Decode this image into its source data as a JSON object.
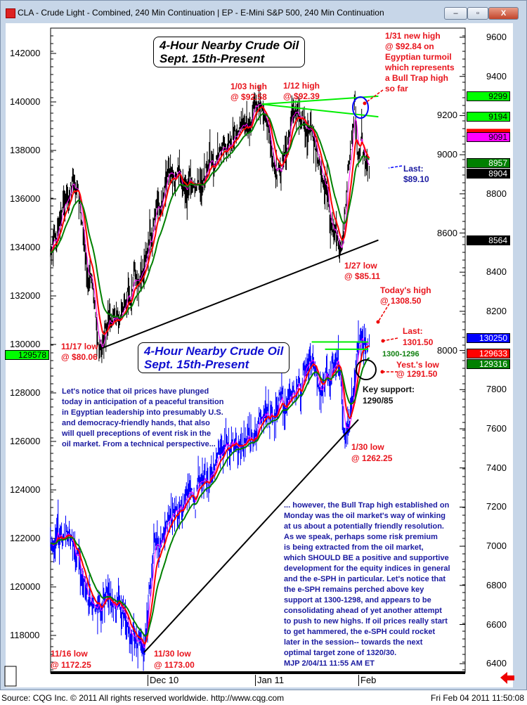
{
  "window": {
    "title": "CLA - Crude Light - Combined, 240 Min Continuation  |  EP - E-Mini S&P 500, 240 Min Continuation",
    "buttons": {
      "minimize": "–",
      "maximize": "▫",
      "close": "X"
    }
  },
  "footer": {
    "source": "Source: CQG Inc. © 2011 All rights reserved worldwide. http://www.cqg.com",
    "timestamp": "Fri Feb 04 2011 11:50:08"
  },
  "colors": {
    "crude": "#000000",
    "sp": "#0000ff",
    "ma_fast": "#ff00ff",
    "ma_mid": "#ff0000",
    "ma_slow": "#008000",
    "trend_green": "#00ee00",
    "annotation_red": "#e8141c",
    "annotation_blue": "#1a1aa0"
  },
  "chart_data": {
    "type": "line",
    "x_ticks": [
      {
        "label": "Dec  10",
        "date": "2010-12-01"
      },
      {
        "label": "Jan  11",
        "date": "2011-01-01"
      },
      {
        "label": "Feb",
        "date": "2011-02-01"
      }
    ],
    "left_axis": {
      "ticks": [
        142000,
        140000,
        138000,
        136000,
        134000,
        132000,
        130000,
        128000,
        126000,
        124000,
        122000,
        120000,
        118000
      ],
      "range": [
        116600,
        143200
      ]
    },
    "right_axis": {
      "ticks": [
        9600,
        9400,
        9200,
        9000,
        8800,
        8600,
        8400,
        8200,
        8000,
        7800,
        7600,
        7400,
        7200,
        7000,
        6800,
        6600,
        6400
      ],
      "range": [
        6310,
        9700
      ]
    },
    "series": [
      {
        "key": "crude",
        "axis": "right",
        "points": [
          [
            "2010-11-03",
            8500
          ],
          [
            "2010-11-08",
            8780
          ],
          [
            "2010-11-11",
            8820
          ],
          [
            "2010-11-17",
            8006
          ],
          [
            "2010-11-19",
            8120
          ],
          [
            "2010-11-23",
            8150
          ],
          [
            "2010-11-30",
            8420
          ],
          [
            "2010-12-07",
            8920
          ],
          [
            "2010-12-15",
            8840
          ],
          [
            "2010-12-22",
            9030
          ],
          [
            "2010-12-28",
            9150
          ],
          [
            "2011-01-03",
            9258
          ],
          [
            "2011-01-07",
            8900
          ],
          [
            "2011-01-10",
            9020
          ],
          [
            "2011-01-12",
            9239
          ],
          [
            "2011-01-18",
            9120
          ],
          [
            "2011-01-21",
            8900
          ],
          [
            "2011-01-24",
            8620
          ],
          [
            "2011-01-27",
            8511
          ],
          [
            "2011-01-31",
            9284
          ],
          [
            "2011-02-01",
            9000
          ],
          [
            "2011-02-02",
            9150
          ],
          [
            "2011-02-03",
            8960
          ],
          [
            "2011-02-04",
            8910
          ]
        ]
      },
      {
        "key": "sp",
        "axis": "left",
        "points": [
          [
            "2010-11-03",
            121800
          ],
          [
            "2010-11-09",
            122000
          ],
          [
            "2010-11-12",
            120500
          ],
          [
            "2010-11-16",
            119000
          ],
          [
            "2010-11-19",
            119800
          ],
          [
            "2010-11-24",
            119000
          ],
          [
            "2010-11-30",
            117300
          ],
          [
            "2010-12-03",
            122000
          ],
          [
            "2010-12-07",
            122800
          ],
          [
            "2010-12-13",
            124000
          ],
          [
            "2010-12-17",
            124300
          ],
          [
            "2010-12-22",
            125500
          ],
          [
            "2010-12-28",
            125800
          ],
          [
            "2011-01-03",
            127000
          ],
          [
            "2011-01-07",
            127000
          ],
          [
            "2011-01-12",
            128000
          ],
          [
            "2011-01-18",
            129300
          ],
          [
            "2011-01-21",
            128000
          ],
          [
            "2011-01-26",
            129500
          ],
          [
            "2011-01-28",
            126225
          ],
          [
            "2011-01-31",
            128500
          ],
          [
            "2011-02-01",
            130200
          ],
          [
            "2011-02-02",
            130400
          ],
          [
            "2011-02-03",
            130000
          ],
          [
            "2011-02-04",
            130150
          ]
        ]
      }
    ],
    "trendlines": [
      {
        "axis": "right",
        "color": "black",
        "from": [
          "2010-11-17",
          8006
        ],
        "to": [
          "2011-02-07",
          8564
        ]
      },
      {
        "axis": "right",
        "color": "green",
        "from": [
          "2011-01-03",
          9258
        ],
        "to": [
          "2011-02-07",
          9299
        ]
      },
      {
        "axis": "right",
        "color": "green",
        "from": [
          "2011-01-03",
          9258
        ],
        "to": [
          "2011-02-07",
          9194
        ]
      },
      {
        "axis": "left",
        "color": "black",
        "from": [
          "2010-11-30",
          117300
        ],
        "to": [
          "2011-02-01",
          126900
        ]
      },
      {
        "axis": "left",
        "color": "green",
        "from": [
          "2011-01-18",
          130100
        ],
        "to": [
          "2011-02-04",
          130100
        ]
      },
      {
        "axis": "left",
        "color": "green",
        "from": [
          "2011-01-22",
          129800
        ],
        "to": [
          "2011-02-04",
          129800
        ]
      }
    ],
    "price_tags": [
      {
        "axis": "right",
        "label": "9299",
        "bg": "#00ff00",
        "fg": "#000000"
      },
      {
        "axis": "right",
        "label": "9194",
        "bg": "#00ff00",
        "fg": "#000000"
      },
      {
        "axis": "right",
        "label": "9091",
        "bg": "#ff00ff",
        "fg": "#000000"
      },
      {
        "axis": "right",
        "label": "8957",
        "bg": "#008000",
        "fg": "#ffffff"
      },
      {
        "axis": "right",
        "label": "8904",
        "bg": "#000000",
        "fg": "#ffffff"
      },
      {
        "axis": "right",
        "label": "8564",
        "bg": "#000000",
        "fg": "#ffffff"
      },
      {
        "axis": "left",
        "label": "130250",
        "bg": "#0000ff",
        "fg": "#ffffff"
      },
      {
        "axis": "left",
        "label": "129633",
        "bg": "#ff0000",
        "fg": "#ffffff"
      },
      {
        "axis": "left",
        "label": "129316",
        "bg": "#008000",
        "fg": "#ffffff"
      },
      {
        "axis": "left",
        "label": "129578",
        "bg": "#00ff00",
        "fg": "#000000",
        "side": "left"
      }
    ],
    "title_boxes": [
      {
        "line1": "4-Hour Nearby Crude Oil",
        "line2": "Sept. 15th-Present"
      },
      {
        "line1": "4-Hour Nearby Crude Oil",
        "line2": "Sept. 15th-Present"
      }
    ],
    "annotations": {
      "high_0131": [
        "1/31 new high",
        "@ $92.84 on",
        "Egyptian turmoil",
        "which represents",
        "a Bull Trap high",
        "so far"
      ],
      "high_0103": [
        "1/03 high",
        "@ $92.58"
      ],
      "high_0112": [
        "1/12 high",
        "@ $92.39"
      ],
      "last_crude": [
        "Last:",
        "$89.10"
      ],
      "low_0127": [
        "1/27 low",
        "@ $85.11"
      ],
      "low_1117": [
        "11/17 low",
        "@ $80.06"
      ],
      "todays_high": [
        "Today's high",
        "@ 1308.50"
      ],
      "last_sp": [
        "Last:",
        "1301.50"
      ],
      "zone": "1300-1296",
      "yest_low": [
        "Yest.'s low",
        "@ 1291.50"
      ],
      "key_support": [
        "Key support:",
        "1290/85"
      ],
      "low_0130": [
        "1/30 low",
        "@ 1262.25"
      ],
      "low_1116": [
        "11/16 low",
        "@ 1172.25"
      ],
      "low_1130": [
        "11/30 low",
        "@ 1173.00"
      ],
      "commentary1": [
        "Let's notice that oil prices have plunged",
        "today in anticipation of a peaceful transition",
        "in Egyptian leadership into presumably U.S.",
        "and democracy-friendly hands, that also",
        "will quell preceptions of event risk in the",
        "oil market. From a technical perspective..."
      ],
      "commentary2": [
        "... however, the Bull Trap high established on",
        "Monday was the oil market's way of winking",
        "at us about a potentially friendly resolution.",
        "As we speak, perhaps some risk premium",
        "is being extracted from the oil market,",
        "which SHOULD BE a positive and supportive",
        "development for the equity indices in general",
        "and the e-SPH in particular. Let's notice that",
        "the e-SPH remains perched above key",
        "support at 1300-1298, and appears to be",
        "consolidating ahead of yet another attempt",
        "to push to new highs. If oil prices really start",
        "to get hammered, the e-SPH could rocket",
        "later in the session-- towards the next",
        "optimal target zone of 1320/30.",
        "MJP  2/04/11  11:55 AM ET"
      ]
    }
  }
}
